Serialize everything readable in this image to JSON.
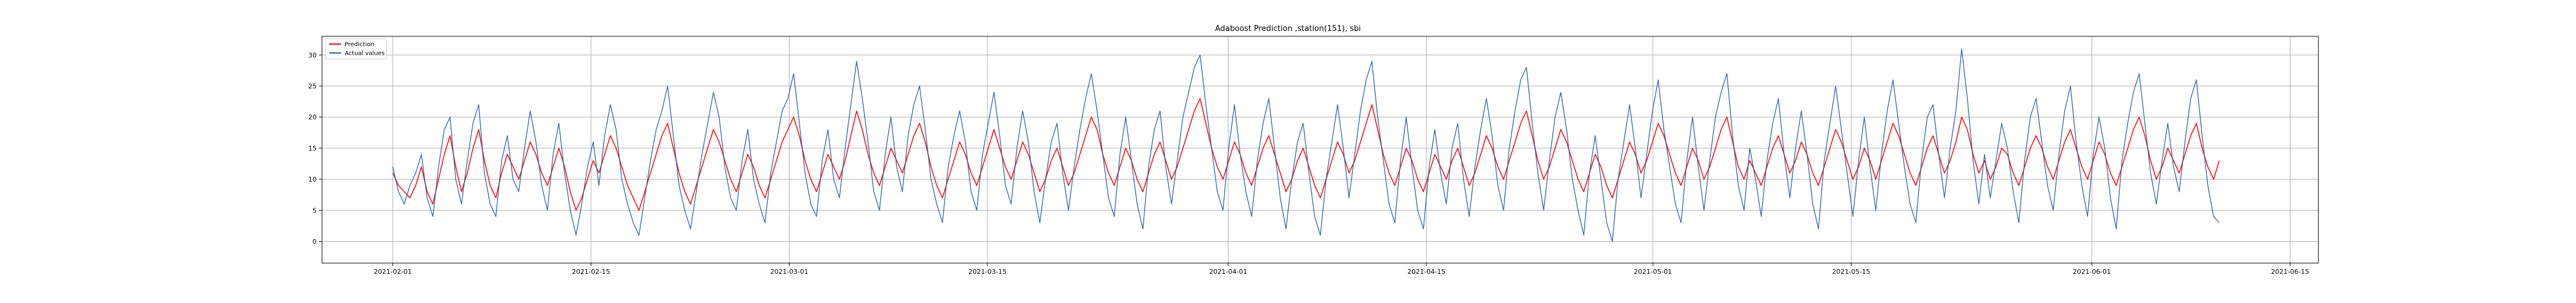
{
  "chart_data": {
    "type": "line",
    "title": "Adaboost Prediction ,station(151), sbi",
    "xlabel": "",
    "ylabel": "",
    "grid": true,
    "legend_position": "top-left",
    "x_range": [
      "2021-02-01",
      "2021-06-10"
    ],
    "xlim": [
      "2021-01-27",
      "2021-06-17"
    ],
    "ylim": [
      -3.5,
      33
    ],
    "x_ticks": [
      "2021-02-01",
      "2021-02-15",
      "2021-03-01",
      "2021-03-15",
      "2021-04-01",
      "2021-04-15",
      "2021-05-01",
      "2021-05-15",
      "2021-06-01",
      "2021-06-15"
    ],
    "y_ticks": [
      0,
      5,
      10,
      15,
      20,
      25,
      30
    ],
    "colors": {
      "prediction": "#ff0000",
      "actual": "#1f5fa8"
    },
    "series": [
      {
        "name": "Prediction",
        "color": "#ff0000",
        "values": [
          11,
          9,
          8,
          7,
          9,
          12,
          8,
          6,
          10,
          14,
          17,
          12,
          8,
          11,
          15,
          18,
          13,
          9,
          7,
          11,
          14,
          12,
          10,
          13,
          16,
          14,
          11,
          9,
          12,
          15,
          12,
          8,
          5,
          7,
          10,
          13,
          11,
          14,
          17,
          15,
          12,
          9,
          7,
          5,
          8,
          11,
          14,
          17,
          19,
          15,
          11,
          8,
          6,
          9,
          12,
          15,
          18,
          16,
          13,
          10,
          8,
          11,
          14,
          12,
          9,
          7,
          10,
          13,
          16,
          18,
          20,
          17,
          13,
          10,
          8,
          11,
          14,
          12,
          10,
          13,
          17,
          21,
          18,
          14,
          11,
          9,
          12,
          15,
          13,
          11,
          14,
          17,
          19,
          16,
          12,
          9,
          7,
          10,
          13,
          16,
          14,
          11,
          9,
          12,
          15,
          18,
          15,
          12,
          10,
          13,
          16,
          14,
          11,
          8,
          10,
          13,
          15,
          12,
          9,
          11,
          14,
          17,
          20,
          18,
          14,
          11,
          9,
          12,
          15,
          13,
          10,
          8,
          11,
          14,
          16,
          13,
          10,
          12,
          15,
          18,
          21,
          23,
          19,
          15,
          12,
          10,
          13,
          16,
          14,
          11,
          9,
          12,
          15,
          17,
          14,
          11,
          8,
          10,
          13,
          15,
          12,
          9,
          7,
          10,
          13,
          16,
          14,
          11,
          13,
          16,
          19,
          22,
          18,
          14,
          11,
          9,
          12,
          15,
          13,
          10,
          8,
          11,
          14,
          12,
          10,
          13,
          15,
          12,
          9,
          11,
          14,
          17,
          15,
          12,
          10,
          13,
          16,
          19,
          21,
          17,
          13,
          10,
          12,
          15,
          18,
          16,
          13,
          10,
          8,
          11,
          14,
          12,
          9,
          7,
          10,
          13,
          16,
          14,
          11,
          13,
          16,
          19,
          17,
          14,
          11,
          9,
          12,
          15,
          13,
          10,
          12,
          15,
          18,
          20,
          16,
          12,
          10,
          13,
          11,
          9,
          12,
          15,
          17,
          14,
          11,
          13,
          16,
          14,
          11,
          9,
          12,
          15,
          18,
          16,
          13,
          10,
          12,
          15,
          13,
          10,
          13,
          16,
          19,
          17,
          14,
          11,
          9,
          12,
          15,
          17,
          14,
          11,
          13,
          16,
          20,
          18,
          14,
          11,
          13,
          10,
          12,
          15,
          14,
          11,
          9,
          12,
          15,
          17,
          15,
          12,
          10,
          13,
          16,
          18,
          15,
          12,
          10,
          13,
          16,
          14,
          11,
          9,
          12,
          15,
          18,
          20,
          17,
          13,
          10,
          12,
          15,
          13,
          11,
          14,
          17,
          19,
          15,
          12,
          10,
          13
        ]
      },
      {
        "name": "Actual values",
        "color": "#1f5fa8",
        "values": [
          12,
          8,
          6,
          9,
          11,
          14,
          7,
          4,
          12,
          18,
          20,
          10,
          6,
          13,
          19,
          22,
          11,
          6,
          4,
          13,
          17,
          10,
          8,
          15,
          21,
          16,
          9,
          5,
          14,
          19,
          11,
          5,
          1,
          6,
          12,
          16,
          9,
          17,
          22,
          18,
          10,
          6,
          3,
          1,
          7,
          13,
          18,
          21,
          25,
          17,
          9,
          5,
          2,
          8,
          14,
          19,
          24,
          20,
          12,
          7,
          5,
          13,
          18,
          10,
          6,
          3,
          11,
          16,
          21,
          23,
          27,
          19,
          11,
          6,
          4,
          13,
          18,
          10,
          7,
          15,
          22,
          29,
          23,
          16,
          8,
          5,
          14,
          20,
          12,
          8,
          17,
          22,
          25,
          18,
          10,
          6,
          3,
          12,
          17,
          21,
          16,
          8,
          5,
          14,
          19,
          24,
          17,
          9,
          6,
          15,
          21,
          16,
          8,
          3,
          10,
          16,
          19,
          11,
          5,
          12,
          18,
          23,
          27,
          21,
          14,
          7,
          4,
          14,
          20,
          13,
          6,
          2,
          12,
          18,
          21,
          12,
          6,
          13,
          20,
          24,
          28,
          30,
          22,
          15,
          8,
          5,
          15,
          22,
          14,
          8,
          4,
          13,
          19,
          23,
          15,
          7,
          2,
          10,
          16,
          19,
          11,
          4,
          1,
          10,
          16,
          22,
          15,
          7,
          14,
          21,
          26,
          29,
          20,
          13,
          6,
          3,
          13,
          20,
          12,
          5,
          2,
          12,
          18,
          11,
          6,
          15,
          19,
          10,
          4,
          12,
          18,
          23,
          17,
          9,
          5,
          15,
          21,
          26,
          28,
          19,
          11,
          5,
          13,
          20,
          24,
          18,
          10,
          5,
          1,
          11,
          17,
          10,
          3,
          0,
          10,
          16,
          22,
          15,
          7,
          14,
          21,
          26,
          18,
          12,
          6,
          3,
          13,
          20,
          12,
          5,
          13,
          20,
          24,
          27,
          17,
          9,
          5,
          15,
          10,
          4,
          13,
          19,
          23,
          14,
          7,
          15,
          21,
          14,
          6,
          2,
          13,
          19,
          25,
          18,
          11,
          4,
          13,
          20,
          12,
          5,
          14,
          21,
          26,
          19,
          12,
          6,
          3,
          13,
          20,
          22,
          14,
          7,
          15,
          21,
          31,
          23,
          13,
          6,
          14,
          7,
          13,
          19,
          15,
          8,
          3,
          13,
          20,
          23,
          16,
          9,
          5,
          14,
          21,
          25,
          16,
          9,
          4,
          14,
          20,
          15,
          7,
          2,
          13,
          19,
          24,
          27,
          19,
          11,
          6,
          13,
          19,
          12,
          8,
          16,
          23,
          26,
          17,
          9,
          4,
          3
        ]
      }
    ]
  }
}
